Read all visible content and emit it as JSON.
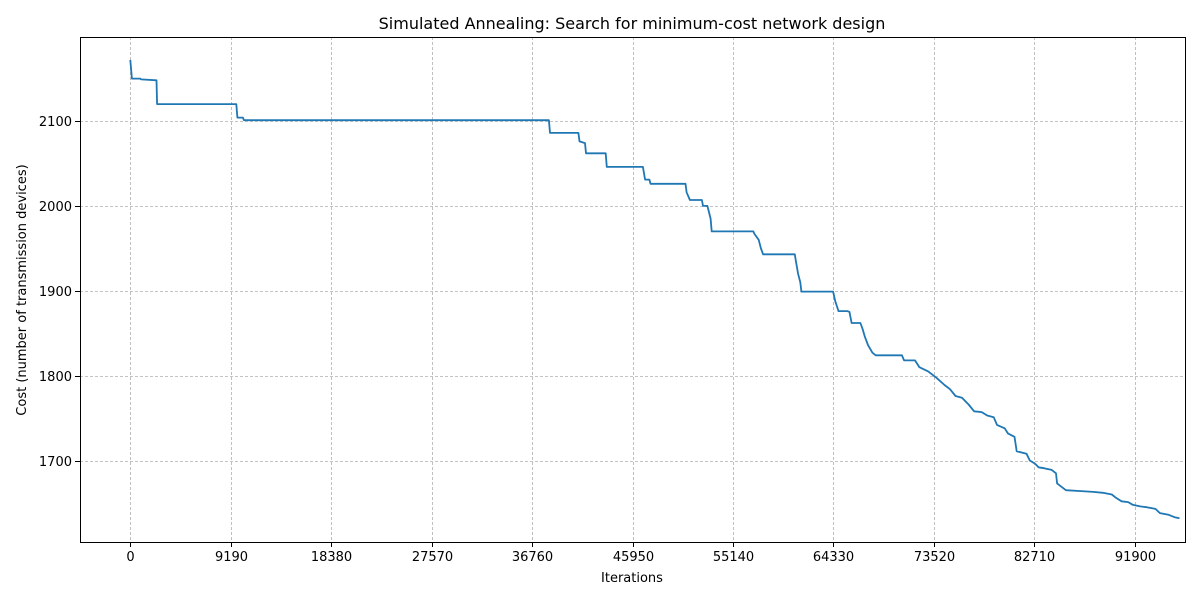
{
  "chart_data": {
    "type": "line",
    "title": "Simulated Annealing: Search for minimum-cost network design",
    "xlabel": "Iterations",
    "ylabel": "Cost (number of transmission devices)",
    "xlim": [
      -4600,
      96500
    ],
    "ylim": [
      1604,
      2199
    ],
    "xticks": [
      0,
      9190,
      18380,
      27570,
      36760,
      45950,
      55140,
      64330,
      73520,
      82710,
      91900
    ],
    "yticks": [
      1700,
      1800,
      1900,
      2000,
      2100
    ],
    "grid": true,
    "line_color": "#1f77b4",
    "series": [
      {
        "points": [
          [
            0,
            2172
          ],
          [
            150,
            2150
          ],
          [
            900,
            2150
          ],
          [
            1000,
            2149
          ],
          [
            2400,
            2148
          ],
          [
            2450,
            2120
          ],
          [
            9700,
            2120
          ],
          [
            9800,
            2104
          ],
          [
            10300,
            2104
          ],
          [
            10400,
            2101
          ],
          [
            38300,
            2101
          ],
          [
            38400,
            2086
          ],
          [
            41000,
            2086
          ],
          [
            41100,
            2076
          ],
          [
            41600,
            2074
          ],
          [
            41700,
            2062
          ],
          [
            43500,
            2062
          ],
          [
            43600,
            2046
          ],
          [
            46900,
            2046
          ],
          [
            47100,
            2031
          ],
          [
            47500,
            2031
          ],
          [
            47600,
            2026
          ],
          [
            50800,
            2026
          ],
          [
            50900,
            2016
          ],
          [
            51200,
            2007
          ],
          [
            52300,
            2007
          ],
          [
            52400,
            2000
          ],
          [
            52800,
            2000
          ],
          [
            53100,
            1985
          ],
          [
            53200,
            1970
          ],
          [
            57000,
            1970
          ],
          [
            57100,
            1967
          ],
          [
            57500,
            1960
          ],
          [
            57700,
            1950
          ],
          [
            57900,
            1943
          ],
          [
            60800,
            1943
          ],
          [
            60900,
            1935
          ],
          [
            61100,
            1920
          ],
          [
            61300,
            1910
          ],
          [
            61400,
            1899
          ],
          [
            64300,
            1899
          ],
          [
            64500,
            1888
          ],
          [
            64800,
            1876
          ],
          [
            65600,
            1876
          ],
          [
            65800,
            1875
          ],
          [
            66000,
            1862
          ],
          [
            66800,
            1862
          ],
          [
            67000,
            1855
          ],
          [
            67200,
            1846
          ],
          [
            67500,
            1836
          ],
          [
            67900,
            1827
          ],
          [
            68200,
            1824
          ],
          [
            70600,
            1824
          ],
          [
            70800,
            1818
          ],
          [
            71800,
            1818
          ],
          [
            72200,
            1810
          ],
          [
            73000,
            1805
          ],
          [
            73800,
            1797
          ],
          [
            74500,
            1789
          ],
          [
            75000,
            1784
          ],
          [
            75500,
            1776
          ],
          [
            76100,
            1774
          ],
          [
            76700,
            1766
          ],
          [
            77200,
            1758
          ],
          [
            77900,
            1757
          ],
          [
            78400,
            1753
          ],
          [
            79000,
            1751
          ],
          [
            79300,
            1742
          ],
          [
            80000,
            1738
          ],
          [
            80300,
            1732
          ],
          [
            80900,
            1728
          ],
          [
            81100,
            1711
          ],
          [
            82000,
            1708
          ],
          [
            82300,
            1700
          ],
          [
            82800,
            1696
          ],
          [
            83100,
            1692
          ],
          [
            83600,
            1691
          ],
          [
            84300,
            1689
          ],
          [
            84700,
            1685
          ],
          [
            84800,
            1673
          ],
          [
            85200,
            1669
          ],
          [
            85600,
            1665
          ],
          [
            87000,
            1664
          ],
          [
            88100,
            1663
          ],
          [
            89000,
            1662
          ],
          [
            89800,
            1660
          ],
          [
            90200,
            1656
          ],
          [
            90700,
            1652
          ],
          [
            91300,
            1651
          ],
          [
            91700,
            1648
          ],
          [
            92400,
            1646
          ],
          [
            93000,
            1645
          ],
          [
            93800,
            1643
          ],
          [
            94200,
            1638
          ],
          [
            95000,
            1636
          ],
          [
            95600,
            1633
          ],
          [
            96000,
            1632
          ]
        ]
      }
    ]
  }
}
